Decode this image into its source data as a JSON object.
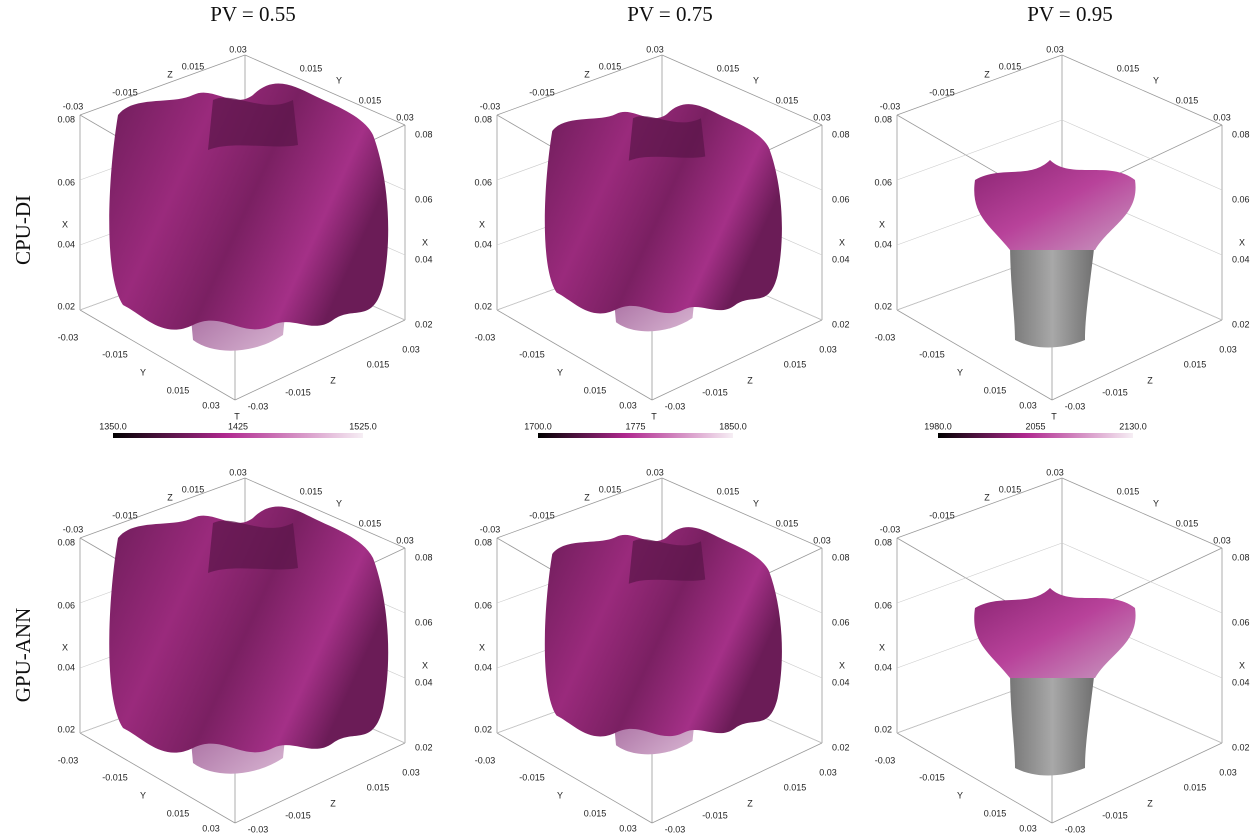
{
  "columns": [
    {
      "title": "PV = 0.55",
      "colorbar": [
        "1350.0",
        "1425",
        "1525.0"
      ]
    },
    {
      "title": "PV = 0.75",
      "colorbar": [
        "1700.0",
        "1775",
        "1850.0"
      ]
    },
    {
      "title": "PV = 0.95",
      "colorbar": [
        "1980.0",
        "2055",
        "2130.0"
      ]
    }
  ],
  "rows": [
    {
      "label": "CPU-DI"
    },
    {
      "label": "GPU-ANN"
    }
  ],
  "axes": {
    "x": "X",
    "y": "Y",
    "z": "Z",
    "t": "T",
    "horizontal_ticks": [
      "-0.03",
      "-0.015",
      "0.015",
      "0.03"
    ],
    "vertical_ticks": [
      "0.08",
      "0.06",
      "0.04",
      "0.02"
    ]
  }
}
